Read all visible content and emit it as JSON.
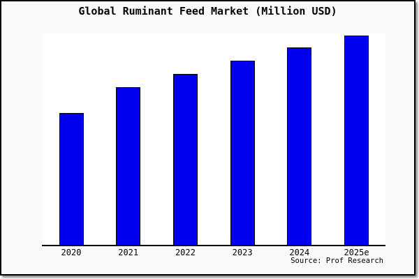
{
  "chart_data": {
    "type": "bar",
    "title": "Global Ruminant Feed Market (Million USD)",
    "categories": [
      "2020",
      "2021",
      "2022",
      "2023",
      "2024",
      "2025e"
    ],
    "series": [
      {
        "name": "Global Ruminant Feed Market",
        "values_relative_pct": [
          63,
          75.2,
          81.7,
          87.9,
          94.3,
          100
        ]
      }
    ],
    "units_note": "no y-axis scale or value labels shown; values are relative bar heights with 2025e = 100",
    "xlabel": "",
    "ylabel": "",
    "y_axis_visible": false,
    "gridlines": false,
    "legend_visible": false,
    "bar_color": "#0000ee",
    "bar_border_color": "#000000",
    "plot_background": "#ffffff",
    "outer_background": "#fafafa",
    "source_note": "Source: Prof Research"
  }
}
